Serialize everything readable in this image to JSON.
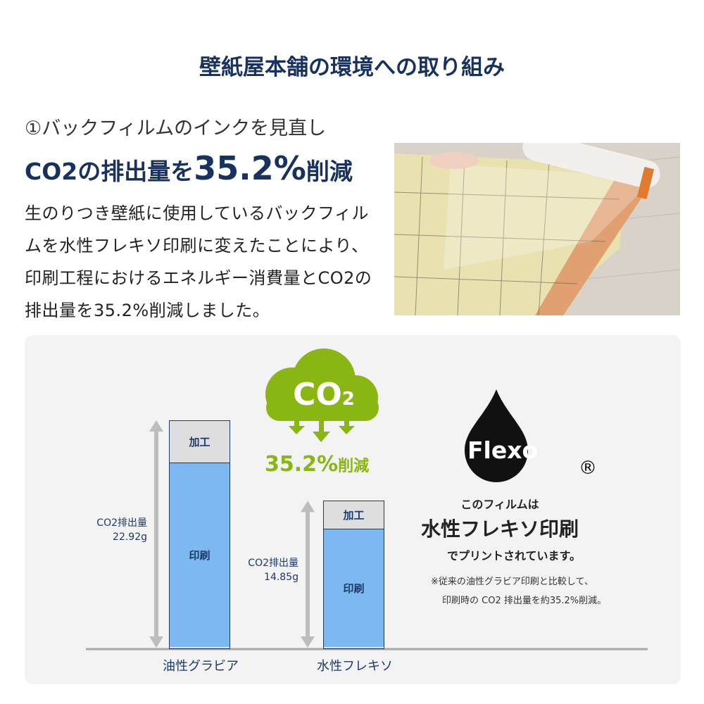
{
  "header": {
    "title": "壁紙屋本舗の環境への取り組み"
  },
  "section": {
    "subtitle": "①バックフィルムのインクを見直し",
    "headline_pre": "CO2の排出量を",
    "headline_num": "35.2%",
    "headline_post": "削減",
    "body": "生のりつき壁紙に使用しているバックフィルムを水性フレキソ印刷に変えたことにより、印刷工程におけるエネルギー消費量とCO2の排出量を35.2%削減しました。"
  },
  "cloud": {
    "text": "CO",
    "sub": "2",
    "reduction": "35.2%",
    "reduction_suffix": "削減",
    "color": "#8ab614"
  },
  "chart_data": {
    "type": "bar",
    "stacked": true,
    "categories": [
      "油性グラビア",
      "水性フレキソ"
    ],
    "segments": [
      "印刷",
      "加工"
    ],
    "totals": [
      22.92,
      14.85
    ],
    "unit": "g",
    "value_labels": [
      {
        "line1": "CO2排出量",
        "line2": "22.92g"
      },
      {
        "line1": "CO2排出量",
        "line2": "14.85g"
      }
    ],
    "segment_labels": {
      "print": "印刷",
      "process": "加工"
    },
    "colors": {
      "print": "#7db9f1",
      "process": "#dedede"
    }
  },
  "flexo": {
    "logo": "Flexo",
    "registered": "®",
    "line1": "このフィルムは",
    "line2": "水性フレキソ印刷",
    "line3": "でプリントされています。",
    "note1": "※従来の油性グラビア印刷と比較して、",
    "note2": "印刷時の CO2 排出量を約35.2%削減。"
  }
}
